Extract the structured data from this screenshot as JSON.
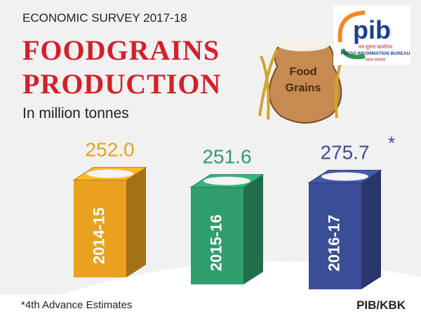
{
  "chart_data": {
    "type": "bar",
    "supertitle": "ECONOMIC SURVEY 2017-18",
    "title": "FOODGRAINS PRODUCTION",
    "subtitle": "In million tonnes",
    "categories": [
      "2014-15",
      "2015-16",
      "2016-17"
    ],
    "values": [
      252.0,
      251.6,
      275.7
    ],
    "value_labels": [
      "252.0",
      "251.6",
      "275.7"
    ],
    "colors": [
      "#e9a11f",
      "#2f9d6c",
      "#3a4d97"
    ],
    "annotation": "*",
    "footnote": "*4th Advance Estimates",
    "credit": "PIB/KBK"
  },
  "logo": {
    "mark": "pib",
    "hindi_name": "पत्र सूचना कार्यालय",
    "name": "PRESS INFORMATION BUREAU",
    "hindi_sub": "भारत सरकार"
  },
  "illustration": {
    "line1": "Food",
    "line2": "Grains"
  }
}
